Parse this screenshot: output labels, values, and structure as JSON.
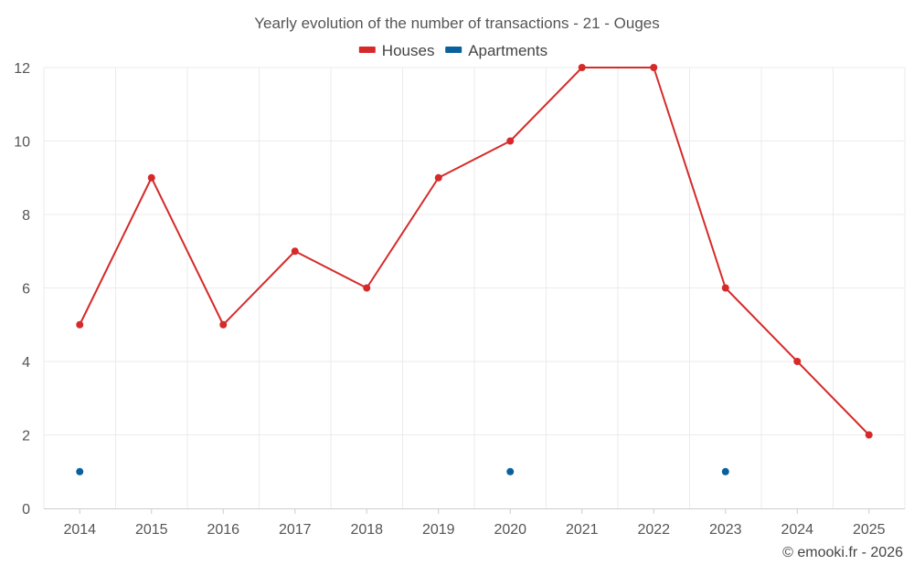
{
  "chart_data": {
    "type": "line",
    "title": "Yearly evolution of the number of transactions - 21 - Ouges",
    "xlabel": "",
    "ylabel": "",
    "categories": [
      "2014",
      "2015",
      "2016",
      "2017",
      "2018",
      "2019",
      "2020",
      "2021",
      "2022",
      "2023",
      "2024",
      "2025"
    ],
    "y_ticks": [
      "0",
      "2",
      "4",
      "6",
      "8",
      "10",
      "12"
    ],
    "ylim": [
      0,
      12
    ],
    "grid": true,
    "legend_position": "top-center",
    "series": [
      {
        "name": "Houses",
        "color": "#d62a2a",
        "values": [
          5,
          9,
          5,
          7,
          6,
          9,
          10,
          12,
          12,
          6,
          4,
          2
        ]
      },
      {
        "name": "Apartments",
        "color": "#08619c",
        "values": [
          1,
          null,
          null,
          null,
          null,
          null,
          1,
          null,
          null,
          1,
          null,
          null
        ]
      }
    ]
  },
  "credit": "© emooki.fr - 2026"
}
